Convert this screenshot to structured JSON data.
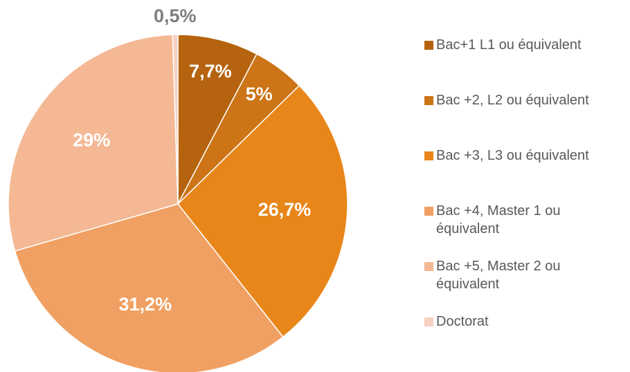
{
  "chart_data": {
    "type": "pie",
    "categories": [
      "Bac+1 L1 ou équivalent",
      "Bac +2, L2 ou équivalent",
      "Bac +3, L3 ou équivalent",
      "Bac +4, Master 1 ou équivalent",
      "Bac +5, Master 2 ou équivalent",
      "Doctorat"
    ],
    "values": [
      7.7,
      5,
      26.7,
      31.2,
      29,
      0.5
    ],
    "value_labels": [
      "7,7%",
      "5%",
      "26,7%",
      "31,2%",
      "29%",
      "0,5%"
    ],
    "colors": [
      "#b5630f",
      "#cc7416",
      "#e8861a",
      "#f0a062",
      "#f4b894",
      "#f8d0c0"
    ],
    "legend": "right"
  }
}
